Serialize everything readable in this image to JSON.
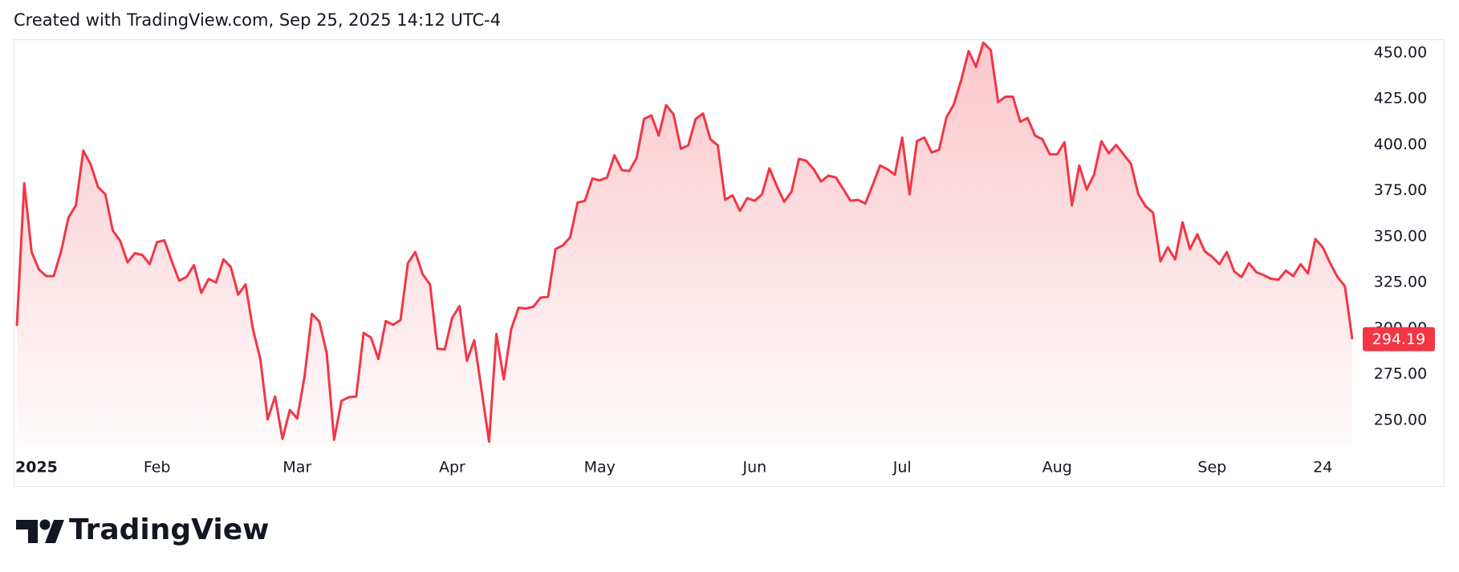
{
  "header": {
    "text": "Created with TradingView.com, Sep 25, 2025 14:12 UTC-4"
  },
  "footer": {
    "brand": "TradingView"
  },
  "chart_data": {
    "type": "area",
    "color": "#f23645",
    "grid": false,
    "values": [
      301.4,
      379.1,
      341.6,
      332,
      328.5,
      328.5,
      342,
      360.4,
      367,
      396.8,
      389.4,
      377,
      373,
      353.3,
      347.7,
      336,
      341,
      340,
      335,
      347,
      348,
      336.6,
      326,
      328,
      334.5,
      319.4,
      327,
      325,
      337.6,
      333.5,
      318.4,
      324,
      299.6,
      283.4,
      250.5,
      263,
      239.9,
      255.6,
      251,
      274,
      308,
      303.7,
      286.5,
      239.4,
      260.6,
      262.6,
      263,
      297.6,
      295,
      283.4,
      304,
      302,
      304.6,
      335.6,
      341.6,
      329.5,
      324,
      289,
      288.6,
      305.7,
      312.2,
      282.4,
      293.6,
      266.2,
      238.4,
      297,
      272.3,
      299.6,
      311.3,
      310.9,
      311.8,
      316.8,
      317.3,
      343.2,
      345.2,
      349.7,
      368.5,
      369.5,
      381.6,
      380.6,
      382.2,
      394.3,
      386.2,
      385.7,
      392.8,
      414,
      416,
      405,
      421.6,
      416.6,
      397.8,
      399.7,
      414,
      417,
      403,
      399.7,
      370,
      372.5,
      364,
      371,
      369.5,
      373,
      387.2,
      377.6,
      369,
      374.5,
      392.3,
      391.3,
      386.7,
      380,
      383.2,
      382.2,
      376,
      369.5,
      370,
      368,
      378.1,
      388.7,
      386.7,
      383.7,
      403.9,
      373,
      402,
      403.9,
      395.8,
      397.3,
      415,
      422,
      435.3,
      451,
      442.4,
      455.6,
      451.5,
      423.2,
      426.2,
      426.2,
      412.5,
      414.6,
      405,
      403,
      394.8,
      394.8,
      401.4,
      367,
      388.7,
      375.6,
      383.7,
      401.9,
      395.3,
      399.9,
      394.8,
      389.7,
      373,
      366.5,
      363,
      336.6,
      344.2,
      337.6,
      357.8,
      343.2,
      351.3,
      342,
      339,
      335,
      341.6,
      331,
      328,
      335.6,
      330.6,
      329,
      327,
      326.6,
      331.5,
      328.5,
      335,
      330,
      348.7,
      344.2,
      335.6,
      328,
      323,
      294.19
    ],
    "xlim": [
      0,
      181
    ],
    "xticks": [
      {
        "value": 0,
        "label": "2025"
      },
      {
        "value": 19,
        "label": "Feb"
      },
      {
        "value": 38,
        "label": "Mar"
      },
      {
        "value": 59,
        "label": "Apr"
      },
      {
        "value": 79,
        "label": "May"
      },
      {
        "value": 100,
        "label": "Jun"
      },
      {
        "value": 120,
        "label": "Jul"
      },
      {
        "value": 141,
        "label": "Aug"
      },
      {
        "value": 162,
        "label": "Sep"
      },
      {
        "value": 177,
        "label": "24"
      }
    ],
    "ylim": [
      236,
      457.4
    ],
    "yticks": [
      {
        "value": 250,
        "label": "250.00"
      },
      {
        "value": 275,
        "label": "275.00"
      },
      {
        "value": 300,
        "label": "300.00"
      },
      {
        "value": 325,
        "label": "325.00"
      },
      {
        "value": 350,
        "label": "350.00"
      },
      {
        "value": 375,
        "label": "375.00"
      },
      {
        "value": 400,
        "label": "400.00"
      },
      {
        "value": 425,
        "label": "425.00"
      },
      {
        "value": 450,
        "label": "450.00"
      }
    ]
  }
}
